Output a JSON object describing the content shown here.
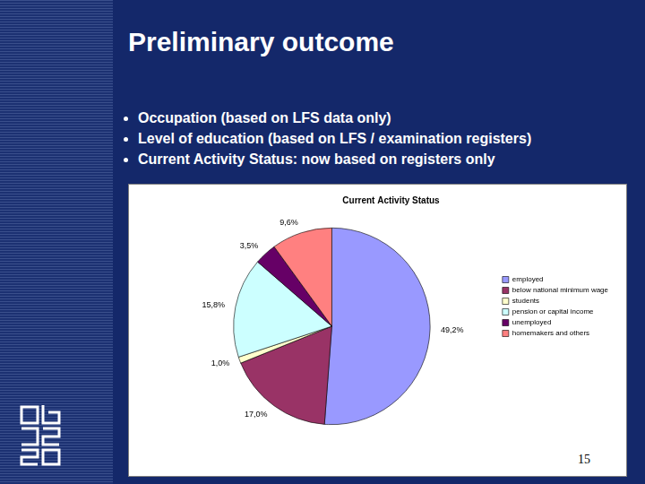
{
  "slide": {
    "title": "Preliminary outcome",
    "bullets": [
      "Occupation (based on LFS data only)",
      "Level of education (based on LFS / examination registers)",
      "Current Activity Status: now based on registers only"
    ],
    "page_number": "15"
  },
  "chart_data": {
    "type": "pie",
    "title": "Current Activity Status",
    "categories": [
      "employed",
      "below national minimum wage",
      "students",
      "pension or capital income",
      "unemployed",
      "homemakers and others"
    ],
    "values": [
      49.2,
      17.0,
      1.0,
      15.8,
      3.5,
      9.6
    ],
    "value_labels": [
      "49,2%",
      "17,0%",
      "1,0%",
      "15,8%",
      "3,5%",
      "9,6%"
    ],
    "colors": [
      "#9999ff",
      "#993366",
      "#ffffcc",
      "#ccffff",
      "#660066",
      "#ff8080"
    ],
    "data_labels": true,
    "legend": "right"
  }
}
